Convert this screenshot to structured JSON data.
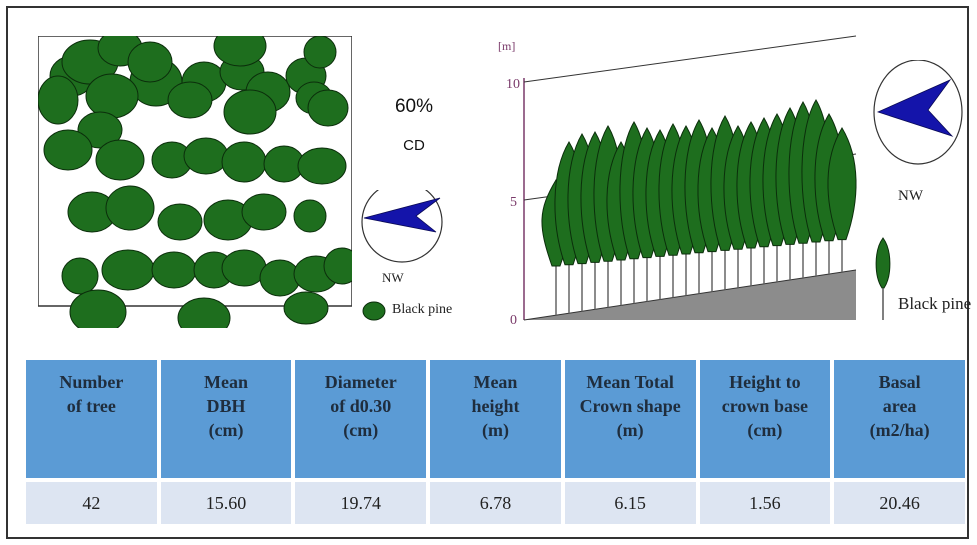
{
  "plan_view": {
    "cd_percent": "60%",
    "cd_label": "CD",
    "compass_label": "NW",
    "legend_label": "Black pine"
  },
  "side_view": {
    "axis_unit": "[m]",
    "ticks": [
      "10",
      "5",
      "0"
    ],
    "compass_label": "NW",
    "legend_label": "Black pine"
  },
  "colors": {
    "tree_fill": "#1e6e1e",
    "tree_outline": "#0b2e0b",
    "compass_arrow": "#1414aa",
    "header_bg": "#5b9bd5",
    "row_bg": "#dde5f2"
  },
  "table": {
    "headers": [
      [
        "Number",
        "of tree"
      ],
      [
        "Mean",
        "DBH",
        "(cm)"
      ],
      [
        "Diameter",
        "of d0.30",
        "(cm)"
      ],
      [
        "Mean",
        "height",
        "(m)"
      ],
      [
        "Mean Total",
        "Crown shape",
        "(m)"
      ],
      [
        "Height to",
        "crown base",
        "(cm)"
      ],
      [
        "Basal",
        "area",
        "(m2/ha)"
      ]
    ],
    "row": [
      "42",
      "15.60",
      "19.74",
      "6.78",
      "6.15",
      "1.56",
      "20.46"
    ]
  }
}
